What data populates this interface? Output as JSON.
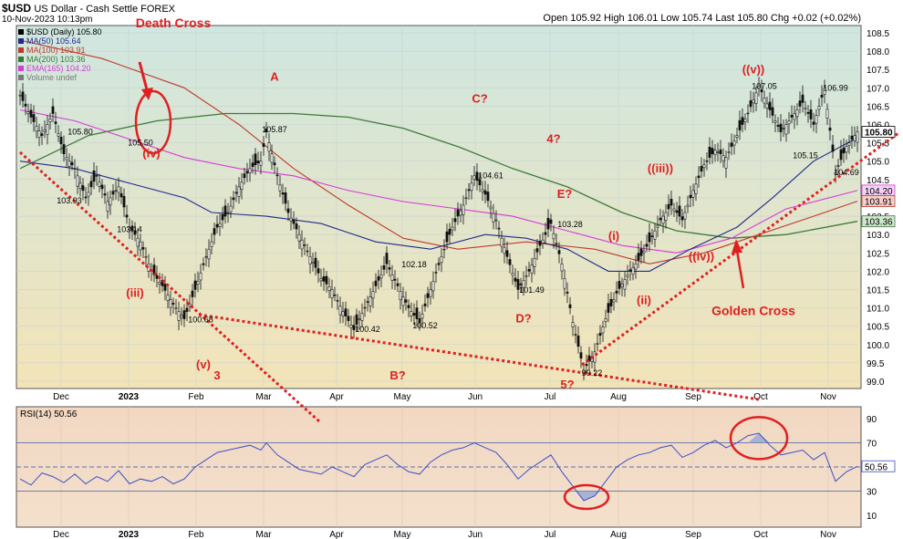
{
  "header": {
    "symbol": "$USD",
    "description": "US Dollar - Cash Settle FOREX",
    "date": "10-Nov-2023 10:13pm",
    "ohlc": "Open 105.92  High 106.01  Low 105.74  Last 105.80  Chg +0.02 (+0.02%)",
    "legend": [
      {
        "text": "$USD (Daily) 105.80",
        "color": "#000000"
      },
      {
        "text": "MA(50) 105.64",
        "color": "#1f2a8c"
      },
      {
        "text": "MA(100) 103.91",
        "color": "#c0392b"
      },
      {
        "text": "MA(200) 103.36",
        "color": "#2e7d32"
      },
      {
        "text": "EMA(165) 104.20",
        "color": "#d63bd6"
      },
      {
        "text": "Volume undef",
        "color": "#7a7a7a"
      }
    ]
  },
  "colors": {
    "ma50": "#1f2a8c",
    "ma100": "#c0392b",
    "ma200": "#3f7a3a",
    "ema165": "#d63bd6",
    "price": "#111111",
    "annotation": "#e02020",
    "rsi": "#3a4fc9"
  },
  "chart_data": [
    {
      "type": "candlestick",
      "ylim": [
        98.8,
        108.7
      ],
      "y_ticks": [
        99.0,
        99.5,
        100.0,
        100.5,
        101.0,
        101.5,
        102.0,
        102.5,
        103.0,
        103.5,
        104.0,
        104.5,
        105.0,
        105.5,
        106.0,
        106.5,
        107.0,
        107.5,
        108.0,
        108.5
      ],
      "x_months": [
        "Dec",
        "2023",
        "Feb",
        "Mar",
        "Apr",
        "May",
        "Jun",
        "Jul",
        "Aug",
        "Sep",
        "Oct",
        "Nov"
      ],
      "right_labels": [
        {
          "text": "105.80",
          "value": 105.8
        },
        {
          "text": "104.20",
          "value": 104.2
        },
        {
          "text": "103.91",
          "value": 103.91
        },
        {
          "text": "103.36",
          "value": 103.36
        }
      ],
      "price_path": [
        [
          0,
          106.8
        ],
        [
          4,
          106.2
        ],
        [
          8,
          105.7
        ],
        [
          12,
          106.3
        ],
        [
          16,
          105.2
        ],
        [
          20,
          104.8
        ],
        [
          24,
          104.0
        ],
        [
          28,
          104.6
        ],
        [
          32,
          103.9
        ],
        [
          36,
          104.3
        ],
        [
          40,
          103.2
        ],
        [
          44,
          102.8
        ],
        [
          48,
          102.0
        ],
        [
          52,
          101.6
        ],
        [
          56,
          101.1
        ],
        [
          60,
          100.7
        ],
        [
          64,
          101.5
        ],
        [
          68,
          102.4
        ],
        [
          72,
          103.2
        ],
        [
          76,
          103.6
        ],
        [
          80,
          104.3
        ],
        [
          84,
          104.8
        ],
        [
          88,
          105.0
        ],
        [
          90,
          105.8
        ],
        [
          94,
          104.6
        ],
        [
          98,
          103.6
        ],
        [
          102,
          103.0
        ],
        [
          106,
          102.4
        ],
        [
          110,
          101.8
        ],
        [
          114,
          101.5
        ],
        [
          118,
          100.9
        ],
        [
          122,
          100.4
        ],
        [
          126,
          101.0
        ],
        [
          130,
          101.6
        ],
        [
          134,
          102.2
        ],
        [
          138,
          101.6
        ],
        [
          142,
          101.0
        ],
        [
          146,
          100.6
        ],
        [
          150,
          101.5
        ],
        [
          154,
          102.4
        ],
        [
          158,
          103.2
        ],
        [
          162,
          103.8
        ],
        [
          166,
          104.6
        ],
        [
          170,
          104.1
        ],
        [
          174,
          103.4
        ],
        [
          178,
          102.4
        ],
        [
          182,
          101.5
        ],
        [
          186,
          102.0
        ],
        [
          190,
          102.7
        ],
        [
          194,
          103.3
        ],
        [
          198,
          102.2
        ],
        [
          202,
          100.6
        ],
        [
          206,
          99.3
        ],
        [
          210,
          99.8
        ],
        [
          214,
          100.7
        ],
        [
          218,
          101.4
        ],
        [
          222,
          101.9
        ],
        [
          226,
          102.3
        ],
        [
          230,
          102.8
        ],
        [
          234,
          103.4
        ],
        [
          238,
          103.8
        ],
        [
          242,
          103.4
        ],
        [
          246,
          104.2
        ],
        [
          250,
          104.9
        ],
        [
          254,
          105.3
        ],
        [
          258,
          105.1
        ],
        [
          262,
          105.7
        ],
        [
          266,
          106.3
        ],
        [
          270,
          107.05
        ],
        [
          274,
          106.4
        ],
        [
          278,
          105.8
        ],
        [
          282,
          106.2
        ],
        [
          286,
          106.6
        ],
        [
          290,
          106.0
        ],
        [
          294,
          106.99
        ],
        [
          298,
          104.69
        ],
        [
          302,
          105.4
        ],
        [
          306,
          105.8
        ]
      ],
      "ma50": [
        [
          0,
          105.0
        ],
        [
          20,
          104.8
        ],
        [
          40,
          104.4
        ],
        [
          60,
          104.0
        ],
        [
          70,
          103.6
        ],
        [
          90,
          103.5
        ],
        [
          110,
          103.3
        ],
        [
          130,
          102.8
        ],
        [
          150,
          102.6
        ],
        [
          170,
          103.0
        ],
        [
          185,
          102.9
        ],
        [
          200,
          102.6
        ],
        [
          215,
          102.0
        ],
        [
          230,
          102.0
        ],
        [
          245,
          102.6
        ],
        [
          262,
          103.2
        ],
        [
          275,
          104.0
        ],
        [
          290,
          105.0
        ],
        [
          306,
          105.64
        ]
      ],
      "ma100": [
        [
          0,
          108.3
        ],
        [
          30,
          107.8
        ],
        [
          60,
          107.0
        ],
        [
          80,
          106.0
        ],
        [
          100,
          104.8
        ],
        [
          120,
          103.8
        ],
        [
          140,
          102.9
        ],
        [
          160,
          102.6
        ],
        [
          185,
          102.8
        ],
        [
          210,
          102.6
        ],
        [
          230,
          102.2
        ],
        [
          250,
          102.5
        ],
        [
          270,
          103.0
        ],
        [
          290,
          103.5
        ],
        [
          306,
          103.91
        ]
      ],
      "ma200": [
        [
          0,
          104.8
        ],
        [
          25,
          105.7
        ],
        [
          50,
          106.1
        ],
        [
          75,
          106.3
        ],
        [
          100,
          106.3
        ],
        [
          120,
          106.2
        ],
        [
          140,
          105.9
        ],
        [
          160,
          105.4
        ],
        [
          180,
          104.8
        ],
        [
          200,
          104.3
        ],
        [
          220,
          103.6
        ],
        [
          240,
          103.1
        ],
        [
          260,
          102.9
        ],
        [
          280,
          103.0
        ],
        [
          306,
          103.36
        ]
      ],
      "ema165": [
        [
          0,
          106.4
        ],
        [
          20,
          106.1
        ],
        [
          40,
          105.6
        ],
        [
          60,
          105.1
        ],
        [
          80,
          104.8
        ],
        [
          100,
          104.6
        ],
        [
          120,
          104.2
        ],
        [
          140,
          103.9
        ],
        [
          160,
          103.7
        ],
        [
          180,
          103.5
        ],
        [
          200,
          103.1
        ],
        [
          220,
          102.7
        ],
        [
          240,
          102.5
        ],
        [
          260,
          102.9
        ],
        [
          280,
          103.7
        ],
        [
          306,
          104.2
        ]
      ],
      "price_labels": [
        {
          "text": "105.80",
          "x": 22,
          "y": 105.8
        },
        {
          "text": "103.93",
          "x": 18,
          "y": 103.93
        },
        {
          "text": "103.14",
          "x": 40,
          "y": 103.14
        },
        {
          "text": "105.50",
          "x": 44,
          "y": 105.5
        },
        {
          "text": "100.68",
          "x": 66,
          "y": 100.68
        },
        {
          "text": "105.87",
          "x": 93,
          "y": 105.87
        },
        {
          "text": "100.42",
          "x": 127,
          "y": 100.42
        },
        {
          "text": "102.18",
          "x": 144,
          "y": 102.18
        },
        {
          "text": "100.52",
          "x": 148,
          "y": 100.52
        },
        {
          "text": "104.61",
          "x": 172,
          "y": 104.61
        },
        {
          "text": "101.49",
          "x": 187,
          "y": 101.49
        },
        {
          "text": "103.28",
          "x": 201,
          "y": 103.28
        },
        {
          "text": "99.22",
          "x": 209,
          "y": 99.22
        },
        {
          "text": "107.05",
          "x": 272,
          "y": 107.05
        },
        {
          "text": "106.99",
          "x": 298,
          "y": 106.99
        },
        {
          "text": "105.15",
          "x": 287,
          "y": 105.15
        },
        {
          "text": "104.69",
          "x": 302,
          "y": 104.69
        }
      ],
      "wave_labels": [
        {
          "text": "Death Cross",
          "x": 56,
          "y": 108.65
        },
        {
          "text": "A",
          "x": 93,
          "y": 107.2
        },
        {
          "text": "C?",
          "x": 168,
          "y": 106.6
        },
        {
          "text": "4?",
          "x": 195,
          "y": 105.5
        },
        {
          "text": "E?",
          "x": 199,
          "y": 104.0
        },
        {
          "text": "((v))",
          "x": 268,
          "y": 107.4
        },
        {
          "text": "(iv)",
          "x": 48,
          "y": 105.1
        },
        {
          "text": "((iii))",
          "x": 234,
          "y": 104.7
        },
        {
          "text": "(i)",
          "x": 217,
          "y": 102.85
        },
        {
          "text": "((iv))",
          "x": 249,
          "y": 102.3
        },
        {
          "text": "(iii)",
          "x": 42,
          "y": 101.3
        },
        {
          "text": "(ii)",
          "x": 228,
          "y": 101.1
        },
        {
          "text": "Golden Cross",
          "x": 268,
          "y": 100.8
        },
        {
          "text": "D?",
          "x": 184,
          "y": 100.6
        },
        {
          "text": "(v)",
          "x": 67,
          "y": 99.35
        },
        {
          "text": "3",
          "x": 72,
          "y": 99.05
        },
        {
          "text": "B?",
          "x": 138,
          "y": 99.05
        },
        {
          "text": "5?",
          "x": 200,
          "y": 98.8
        }
      ]
    },
    {
      "type": "line",
      "title": "RSI(14) 50.56",
      "ylim": [
        0,
        100
      ],
      "y_ticks": [
        10,
        30,
        50,
        70,
        90
      ],
      "last_value": 50.56,
      "last_label": "50.56",
      "guide_lines": [
        30,
        50,
        70
      ],
      "rsi": [
        [
          0,
          40
        ],
        [
          4,
          35
        ],
        [
          8,
          45
        ],
        [
          12,
          42
        ],
        [
          16,
          37
        ],
        [
          20,
          44
        ],
        [
          24,
          36
        ],
        [
          28,
          42
        ],
        [
          32,
          38
        ],
        [
          36,
          47
        ],
        [
          40,
          36
        ],
        [
          44,
          40
        ],
        [
          48,
          38
        ],
        [
          52,
          42
        ],
        [
          56,
          36
        ],
        [
          60,
          40
        ],
        [
          64,
          50
        ],
        [
          68,
          56
        ],
        [
          72,
          62
        ],
        [
          76,
          64
        ],
        [
          80,
          66
        ],
        [
          84,
          68
        ],
        [
          88,
          64
        ],
        [
          90,
          70
        ],
        [
          94,
          60
        ],
        [
          98,
          54
        ],
        [
          102,
          48
        ],
        [
          106,
          46
        ],
        [
          110,
          44
        ],
        [
          114,
          50
        ],
        [
          118,
          46
        ],
        [
          122,
          42
        ],
        [
          126,
          52
        ],
        [
          130,
          56
        ],
        [
          134,
          60
        ],
        [
          138,
          52
        ],
        [
          142,
          46
        ],
        [
          146,
          44
        ],
        [
          150,
          54
        ],
        [
          154,
          60
        ],
        [
          158,
          64
        ],
        [
          162,
          66
        ],
        [
          166,
          70
        ],
        [
          170,
          66
        ],
        [
          174,
          62
        ],
        [
          178,
          52
        ],
        [
          182,
          40
        ],
        [
          186,
          48
        ],
        [
          190,
          54
        ],
        [
          194,
          60
        ],
        [
          198,
          46
        ],
        [
          202,
          34
        ],
        [
          206,
          22
        ],
        [
          210,
          26
        ],
        [
          214,
          38
        ],
        [
          218,
          50
        ],
        [
          222,
          56
        ],
        [
          226,
          60
        ],
        [
          230,
          62
        ],
        [
          234,
          66
        ],
        [
          238,
          68
        ],
        [
          242,
          58
        ],
        [
          246,
          62
        ],
        [
          250,
          68
        ],
        [
          254,
          72
        ],
        [
          258,
          66
        ],
        [
          262,
          70
        ],
        [
          266,
          76
        ],
        [
          270,
          78
        ],
        [
          274,
          68
        ],
        [
          278,
          60
        ],
        [
          282,
          62
        ],
        [
          286,
          64
        ],
        [
          290,
          56
        ],
        [
          294,
          62
        ],
        [
          298,
          38
        ],
        [
          302,
          46
        ],
        [
          306,
          50.56
        ]
      ]
    }
  ]
}
